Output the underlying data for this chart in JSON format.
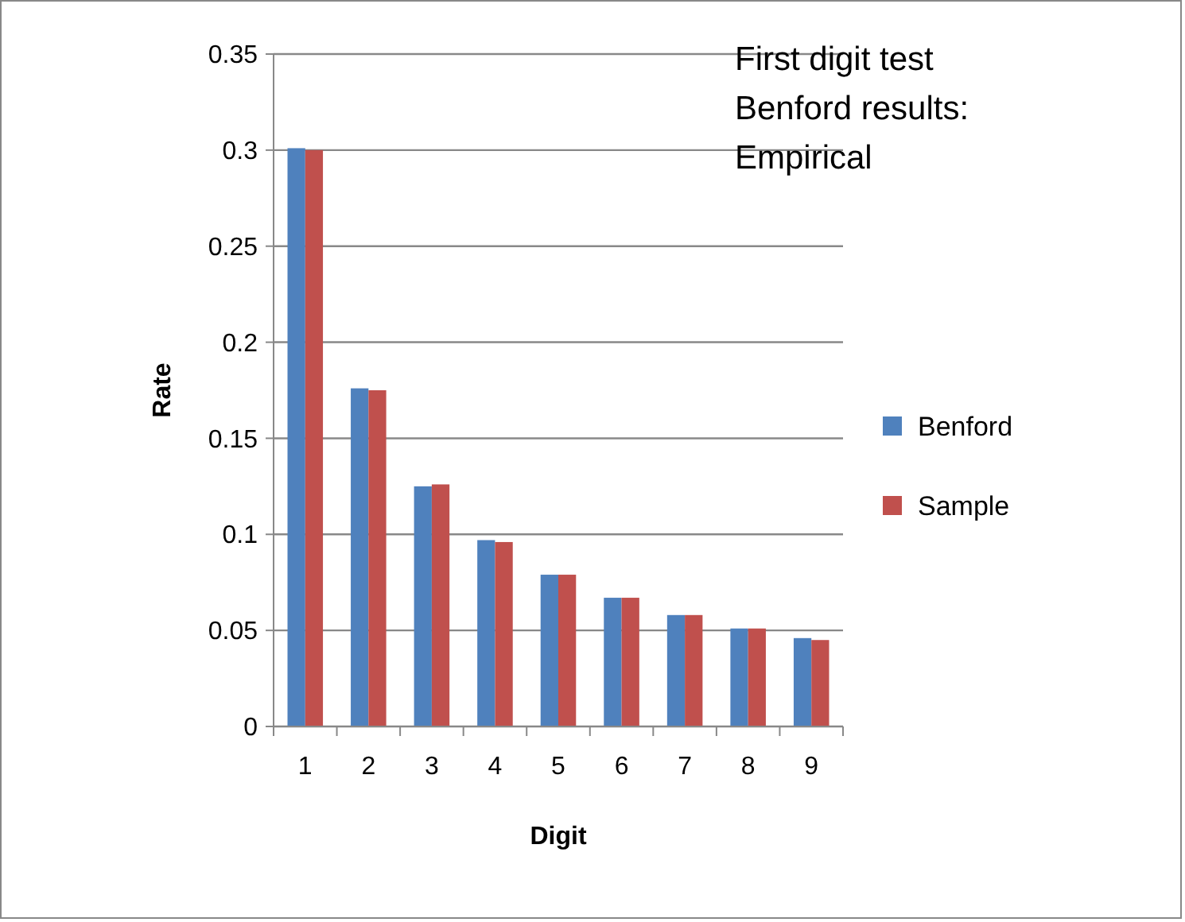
{
  "chart_data": {
    "type": "bar",
    "title": "First digit test Benford results: Empirical",
    "xlabel": "Digit",
    "ylabel": "Rate",
    "categories": [
      "1",
      "2",
      "3",
      "4",
      "5",
      "6",
      "7",
      "8",
      "9"
    ],
    "series": [
      {
        "name": "Benford",
        "color": "#4f81bd",
        "values": [
          0.301,
          0.176,
          0.125,
          0.097,
          0.079,
          0.067,
          0.058,
          0.051,
          0.046
        ]
      },
      {
        "name": "Sample",
        "color": "#c0504d",
        "values": [
          0.3,
          0.175,
          0.126,
          0.096,
          0.079,
          0.067,
          0.058,
          0.051,
          0.045
        ]
      }
    ],
    "ylim": [
      0,
      0.35
    ],
    "yticks": [
      0,
      0.05,
      0.1,
      0.15,
      0.2,
      0.25,
      0.3,
      0.35
    ],
    "grid": "y",
    "legend": "right"
  }
}
